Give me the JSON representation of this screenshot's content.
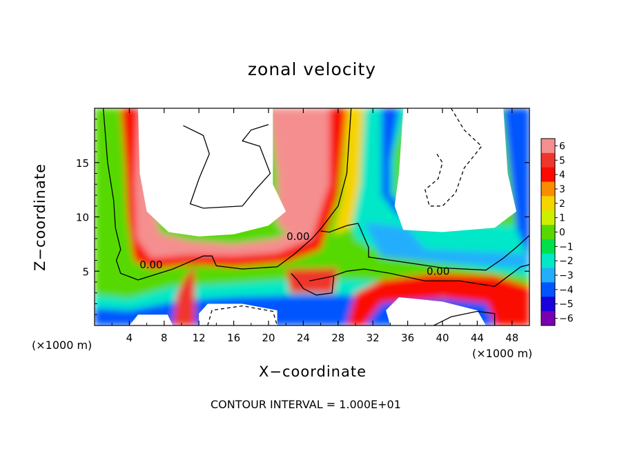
{
  "chart_data": {
    "type": "heatmap",
    "title": "zonal velocity",
    "xlabel": "X−coordinate",
    "ylabel": "Z−coordinate",
    "x_unit_label": "(×1000 m)",
    "x_ticks": [
      4,
      8,
      12,
      16,
      20,
      24,
      28,
      32,
      36,
      40,
      44,
      48
    ],
    "x_tick_labels": [
      "4",
      "8",
      "12",
      "16",
      "20",
      "24",
      "28",
      "32",
      "36",
      "40",
      "44",
      "48"
    ],
    "xlim": [
      0,
      50
    ],
    "y_ticks": [
      5,
      10,
      15
    ],
    "y_tick_labels": [
      "5",
      "10",
      "15"
    ],
    "ylim": [
      0,
      20
    ],
    "colorbar": {
      "levels": [
        6,
        5,
        4,
        3,
        2,
        1,
        0,
        -1,
        -2,
        -3,
        -4,
        -5,
        -6
      ],
      "labels": [
        "6",
        "5",
        "4",
        "3",
        "2",
        "1",
        "0",
        "−1",
        "−2",
        "−3",
        "−4",
        "−5",
        "−6"
      ],
      "colors": [
        "#f58f8f",
        "#f0362c",
        "#fa0a00",
        "#fa8c00",
        "#f5d400",
        "#cdf000",
        "#57d900",
        "#00e04a",
        "#00e8c8",
        "#23aefc",
        "#0055ff",
        "#1a00dc",
        "#7800b0"
      ]
    },
    "contour_labels": [
      {
        "text": "0.00",
        "x": 6.5,
        "z": 5.6
      },
      {
        "text": "0.00",
        "x": 23.4,
        "z": 8.2
      },
      {
        "text": "0.00",
        "x": 39.5,
        "z": 5.0
      }
    ],
    "contour_interval_text": "CONTOUR INTERVAL = 1.000E+01"
  }
}
